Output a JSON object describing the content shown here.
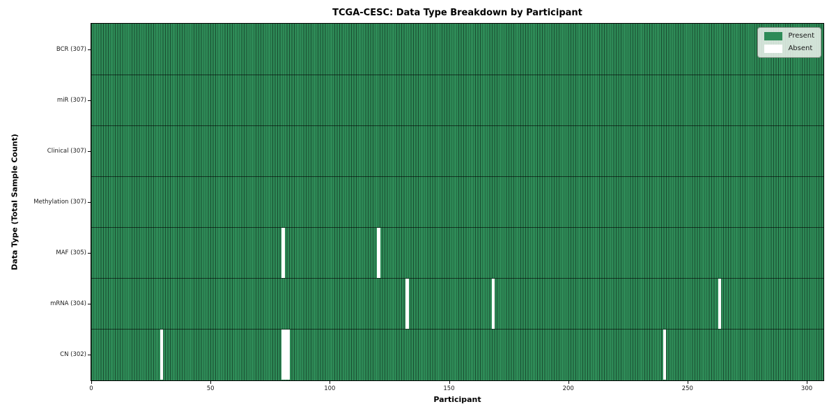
{
  "chart_data": {
    "type": "heatmap",
    "title": "TCGA-CESC: Data Type Breakdown by Participant",
    "xlabel": "Participant",
    "ylabel": "Data Type (Total Sample Count)",
    "n_participants": 307,
    "x_ticks": [
      0,
      50,
      100,
      150,
      200,
      250,
      300
    ],
    "x_range": [
      0,
      307
    ],
    "grid": false,
    "rows": [
      {
        "label": "BCR (307)",
        "data_type": "BCR",
        "present_count": 307,
        "absent_participants": []
      },
      {
        "label": "miR (307)",
        "data_type": "miR",
        "present_count": 307,
        "absent_participants": []
      },
      {
        "label": "Clinical (307)",
        "data_type": "Clinical",
        "present_count": 307,
        "absent_participants": []
      },
      {
        "label": "Methylation (307)",
        "data_type": "Methylation",
        "present_count": 307,
        "absent_participants": []
      },
      {
        "label": "MAF (305)",
        "data_type": "MAF",
        "present_count": 305,
        "absent_participants": [
          80,
          120
        ]
      },
      {
        "label": "mRNA (304)",
        "data_type": "mRNA",
        "present_count": 304,
        "absent_participants": [
          132,
          168,
          263
        ]
      },
      {
        "label": "CN (302)",
        "data_type": "CN",
        "present_count": 302,
        "absent_participants": [
          29,
          80,
          81,
          82,
          240
        ]
      }
    ],
    "legend": {
      "position": "upper right",
      "entries": [
        {
          "label": "Present",
          "color": "#2e8b57"
        },
        {
          "label": "Absent",
          "color": "#ffffff"
        }
      ]
    },
    "colors": {
      "present": "#2e8b57",
      "absent": "#ffffff",
      "cell_border": "rgba(0,0,0,0.45)",
      "row_border": "rgba(0,0,0,0.6)",
      "plot_border": "#000000"
    }
  }
}
